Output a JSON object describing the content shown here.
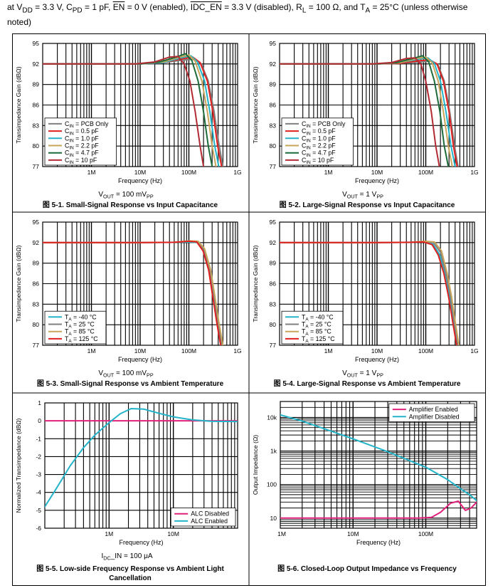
{
  "conditions": {
    "text": "at V_DD = 3.3 V, C_PD = 1 pF, EN = 0 V (enabled), IDC_EN = 3.3 V (disabled), R_L = 100 Ω, and T_A = 25°C (unless otherwise noted)"
  },
  "colors": {
    "pcb": "#7f7f7f",
    "c05": "#e0201f",
    "c10": "#23b4c9",
    "c22": "#c8a55a",
    "c47": "#1c6b3a",
    "c10p": "#b22b34",
    "t_m40": "#23b4c9",
    "t_25": "#7f7f7f",
    "t_85": "#c8a55a",
    "t_125": "#e0201f",
    "alc_disabled": "#e0217a",
    "alc_enabled": "#23b4c9",
    "amp_enabled": "#e0217a",
    "amp_disabled": "#23b4c9"
  },
  "chart_data": [
    {
      "id": "fig-5-1",
      "type": "line",
      "caption": "图 5-1. Small-Signal Response vs Input Capacitance",
      "subcaption": "V_OUT = 100 mV_PP",
      "xlabel": "Frequency (Hz)",
      "ylabel": "Transimpedance Gain (dBΩ)",
      "xscale": "log",
      "xlim": [
        100000,
        1000000000
      ],
      "ylim": [
        77,
        95
      ],
      "xticks": [
        {
          "v": 1000000,
          "label": "1M"
        },
        {
          "v": 10000000,
          "label": "10M"
        },
        {
          "v": 100000000,
          "label": "100M"
        },
        {
          "v": 1000000000,
          "label": "1G"
        }
      ],
      "yticks": [
        77,
        80,
        83,
        86,
        89,
        92,
        95
      ],
      "legend": "bottom-left",
      "series": [
        {
          "name": "C_IN = PCB Only",
          "color_key": "pcb",
          "x": [
            100000,
            10000000,
            30000000,
            80000000,
            130000000,
            180000000,
            250000000,
            330000000,
            420000000,
            500000000
          ],
          "y": [
            92,
            92,
            92.2,
            92.6,
            92.7,
            92,
            89.5,
            85,
            80,
            77
          ]
        },
        {
          "name": "C_IN = 0.5 pF",
          "color_key": "c05",
          "x": [
            100000,
            10000000,
            30000000,
            80000000,
            120000000,
            170000000,
            240000000,
            310000000,
            390000000,
            470000000
          ],
          "y": [
            92,
            92,
            92.2,
            92.8,
            93,
            92.2,
            89.5,
            85,
            80,
            77
          ]
        },
        {
          "name": "C_IN = 1.0 pF",
          "color_key": "c10",
          "x": [
            100000,
            10000000,
            30000000,
            70000000,
            110000000,
            150000000,
            210000000,
            270000000,
            340000000,
            410000000
          ],
          "y": [
            92,
            92,
            92.2,
            92.9,
            93.2,
            92.3,
            89.5,
            85,
            80,
            77
          ]
        },
        {
          "name": "C_IN = 2.2 pF",
          "color_key": "c22",
          "x": [
            100000,
            10000000,
            30000000,
            65000000,
            100000000,
            135000000,
            185000000,
            240000000,
            300000000,
            360000000
          ],
          "y": [
            92,
            92,
            92.3,
            93,
            93.3,
            92.4,
            89.5,
            85,
            80,
            77
          ]
        },
        {
          "name": "C_IN = 4.7 pF",
          "color_key": "c47",
          "x": [
            100000,
            10000000,
            25000000,
            55000000,
            85000000,
            115000000,
            155000000,
            200000000,
            250000000,
            300000000
          ],
          "y": [
            92,
            92,
            92.3,
            93,
            93.5,
            92.5,
            89.5,
            85,
            80,
            77
          ]
        },
        {
          "name": "C_IN = 10 pF",
          "color_key": "c10p",
          "x": [
            100000,
            8000000,
            20000000,
            40000000,
            60000000,
            80000000,
            105000000,
            135000000,
            170000000,
            200000000
          ],
          "y": [
            92,
            92,
            92.3,
            93,
            93.1,
            92,
            89.5,
            85,
            80,
            77
          ]
        }
      ]
    },
    {
      "id": "fig-5-2",
      "type": "line",
      "caption": "图 5-2. Large-Signal Response vs Input Capacitance",
      "subcaption": "V_OUT = 1 V_PP",
      "xlabel": "Frequency (Hz)",
      "ylabel": "Transimpedance Gain (dBΩ)",
      "xscale": "log",
      "xlim": [
        100000,
        1000000000
      ],
      "ylim": [
        77,
        95
      ],
      "xticks": [
        {
          "v": 1000000,
          "label": "1M"
        },
        {
          "v": 10000000,
          "label": "10M"
        },
        {
          "v": 100000000,
          "label": "100M"
        },
        {
          "v": 1000000000,
          "label": "1G"
        }
      ],
      "yticks": [
        77,
        80,
        83,
        86,
        89,
        92,
        95
      ],
      "legend": "bottom-left",
      "series": [
        {
          "name": "C_IN = PCB Only",
          "color_key": "pcb",
          "x": [
            100000,
            10000000,
            30000000,
            80000000,
            130000000,
            180000000,
            240000000,
            310000000,
            390000000,
            460000000
          ],
          "y": [
            92,
            92,
            92.1,
            92.3,
            92.4,
            91.8,
            89.5,
            85,
            80,
            77
          ]
        },
        {
          "name": "C_IN = 0.5 pF",
          "color_key": "c05",
          "x": [
            100000,
            10000000,
            30000000,
            80000000,
            120000000,
            170000000,
            230000000,
            300000000,
            370000000,
            440000000
          ],
          "y": [
            92,
            92,
            92.1,
            92.5,
            92.6,
            92,
            89.5,
            85,
            80,
            77
          ]
        },
        {
          "name": "C_IN = 1.0 pF",
          "color_key": "c10",
          "x": [
            100000,
            10000000,
            30000000,
            70000000,
            110000000,
            150000000,
            200000000,
            260000000,
            330000000,
            400000000
          ],
          "y": [
            92,
            92,
            92.2,
            92.7,
            92.9,
            92.1,
            89.5,
            85,
            80,
            77
          ]
        },
        {
          "name": "C_IN = 2.2 pF",
          "color_key": "c22",
          "x": [
            100000,
            10000000,
            30000000,
            65000000,
            100000000,
            135000000,
            180000000,
            230000000,
            290000000,
            350000000
          ],
          "y": [
            92,
            92,
            92.2,
            92.8,
            93,
            92.2,
            89.5,
            85,
            80,
            77
          ]
        },
        {
          "name": "C_IN = 4.7 pF",
          "color_key": "c47",
          "x": [
            100000,
            10000000,
            25000000,
            55000000,
            85000000,
            115000000,
            150000000,
            195000000,
            240000000,
            290000000
          ],
          "y": [
            92,
            92,
            92.2,
            92.8,
            93.2,
            92.3,
            89.5,
            85,
            80,
            77
          ]
        },
        {
          "name": "C_IN = 10 pF",
          "color_key": "c10p",
          "x": [
            100000,
            8000000,
            20000000,
            40000000,
            60000000,
            80000000,
            100000000,
            130000000,
            160000000,
            190000000
          ],
          "y": [
            92,
            92,
            92.2,
            92.8,
            92.9,
            91.9,
            89.5,
            85,
            80,
            77
          ]
        }
      ]
    },
    {
      "id": "fig-5-3",
      "type": "line",
      "caption": "图 5-3. Small-Signal Response vs Ambient Temperature",
      "subcaption": "V_OUT = 100 mV_PP",
      "xlabel": "Frequency (Hz)",
      "ylabel": "Transimpedance Gain (dBΩ)",
      "xscale": "log",
      "xlim": [
        100000,
        1000000000
      ],
      "ylim": [
        77,
        95
      ],
      "xticks": [
        {
          "v": 1000000,
          "label": "1M"
        },
        {
          "v": 10000000,
          "label": "10M"
        },
        {
          "v": 100000000,
          "label": "100M"
        },
        {
          "v": 1000000000,
          "label": "1G"
        }
      ],
      "yticks": [
        77,
        80,
        83,
        86,
        89,
        92,
        95
      ],
      "legend": "bottom-left",
      "series": [
        {
          "name": "T_A = -40 °C",
          "color_key": "t_m40",
          "x": [
            100000,
            10000000,
            50000000,
            100000000,
            150000000,
            200000000,
            260000000,
            320000000,
            390000000,
            460000000
          ],
          "y": [
            92,
            92,
            92.05,
            92.1,
            92,
            90.8,
            88,
            84,
            80,
            77
          ]
        },
        {
          "name": "T_A = 25 °C",
          "color_key": "t_25",
          "x": [
            100000,
            10000000,
            50000000,
            100000000,
            150000000,
            205000000,
            270000000,
            335000000,
            405000000,
            480000000
          ],
          "y": [
            92,
            92,
            92.05,
            92.2,
            92.1,
            91,
            88,
            84,
            80,
            77
          ]
        },
        {
          "name": "T_A = 85 °C",
          "color_key": "t_85",
          "x": [
            100000,
            10000000,
            50000000,
            100000000,
            155000000,
            210000000,
            280000000,
            345000000,
            420000000,
            500000000
          ],
          "y": [
            92,
            92,
            92.05,
            92.25,
            92.2,
            91.1,
            88,
            84,
            80,
            77
          ]
        },
        {
          "name": "T_A = 125 °C",
          "color_key": "t_125",
          "x": [
            100000,
            10000000,
            50000000,
            100000000,
            145000000,
            195000000,
            255000000,
            310000000,
            380000000,
            450000000
          ],
          "y": [
            92,
            92,
            92.05,
            92.2,
            92.1,
            90.8,
            88,
            84,
            80,
            77
          ]
        }
      ]
    },
    {
      "id": "fig-5-4",
      "type": "line",
      "caption": "图 5-4. Large-Signal Response vs Ambient Temperature",
      "subcaption": "V_OUT = 1 V_PP",
      "xlabel": "Frequency (Hz)",
      "ylabel": "Transimpedance Gain (dBΩ)",
      "xscale": "log",
      "xlim": [
        100000,
        1000000000
      ],
      "ylim": [
        77,
        95
      ],
      "xticks": [
        {
          "v": 1000000,
          "label": "1M"
        },
        {
          "v": 10000000,
          "label": "10M"
        },
        {
          "v": 100000000,
          "label": "100M"
        },
        {
          "v": 1000000000,
          "label": "1G"
        }
      ],
      "yticks": [
        77,
        80,
        83,
        86,
        89,
        92,
        95
      ],
      "legend": "bottom-left",
      "series": [
        {
          "name": "T_A = -40 °C",
          "color_key": "t_m40",
          "x": [
            100000,
            10000000,
            50000000,
            90000000,
            140000000,
            190000000,
            250000000,
            310000000,
            380000000,
            440000000
          ],
          "y": [
            92,
            92,
            92.05,
            92.1,
            91.8,
            90.3,
            87.5,
            84,
            80,
            77
          ]
        },
        {
          "name": "T_A = 25 °C",
          "color_key": "t_25",
          "x": [
            100000,
            10000000,
            50000000,
            90000000,
            145000000,
            200000000,
            260000000,
            325000000,
            395000000,
            460000000
          ],
          "y": [
            92,
            92,
            92.05,
            92.15,
            92,
            90.6,
            87.5,
            84,
            80,
            77
          ]
        },
        {
          "name": "T_A = 85 °C",
          "color_key": "t_85",
          "x": [
            100000,
            10000000,
            50000000,
            95000000,
            150000000,
            210000000,
            275000000,
            340000000,
            410000000,
            480000000
          ],
          "y": [
            92,
            92,
            92.05,
            92.2,
            92.1,
            90.8,
            87.5,
            84,
            80,
            77
          ]
        },
        {
          "name": "T_A = 125 °C",
          "color_key": "t_125",
          "x": [
            100000,
            10000000,
            50000000,
            90000000,
            135000000,
            180000000,
            235000000,
            295000000,
            365000000,
            430000000
          ],
          "y": [
            92,
            92,
            92.05,
            92.1,
            91.7,
            90.2,
            87.5,
            84,
            80,
            77
          ]
        }
      ]
    },
    {
      "id": "fig-5-5",
      "type": "line",
      "caption": "图 5-5. Low-side Frequency Response vs Ambient Light Cancellation",
      "subcaption": "I_DC_IN = 100 μA",
      "xlabel": "Frequency (Hz)",
      "ylabel": "Normalized Transimpedance (dBΩ)",
      "xscale": "log",
      "xlim": [
        100000,
        100000000
      ],
      "ylim": [
        -6,
        1
      ],
      "xticks": [
        {
          "v": 1000000,
          "label": "1M"
        },
        {
          "v": 10000000,
          "label": "10M"
        }
      ],
      "yticks": [
        -6,
        -5,
        -4,
        -3,
        -2,
        -1,
        0,
        1
      ],
      "legend": "bottom-right",
      "series": [
        {
          "name": "ALC Disabled",
          "color_key": "alc_disabled",
          "x": [
            100000,
            100000000
          ],
          "y": [
            0,
            0
          ]
        },
        {
          "name": "ALC Enabled",
          "color_key": "alc_enabled",
          "x": [
            100000,
            150000,
            250000,
            400000,
            600000,
            1000000,
            1500000,
            2200000,
            3500000,
            6000000,
            10000000,
            20000000,
            40000000,
            100000000
          ],
          "y": [
            -4.8,
            -3.8,
            -2.5,
            -1.5,
            -0.8,
            -0.1,
            0.4,
            0.68,
            0.65,
            0.42,
            0.22,
            0.05,
            -0.03,
            -0.04
          ]
        }
      ]
    },
    {
      "id": "fig-5-6",
      "type": "line",
      "caption": "图 5-6. Closed-Loop Output Impedance vs Frequency",
      "subcaption": "",
      "xlabel": "Frequency (Hz)",
      "ylabel": "Output Impedance (Ω)",
      "xscale": "log",
      "yscale": "log",
      "xlim": [
        1000000,
        500000000
      ],
      "ylim": [
        5,
        30000
      ],
      "xticks": [
        {
          "v": 1000000,
          "label": "1M"
        },
        {
          "v": 10000000,
          "label": "10M"
        },
        {
          "v": 100000000,
          "label": "100M"
        }
      ],
      "yticks": [
        {
          "v": 10,
          "label": "10"
        },
        {
          "v": 100,
          "label": "100"
        },
        {
          "v": 1000,
          "label": "1k"
        },
        {
          "v": 10000,
          "label": "10k"
        }
      ],
      "legend": "top-right",
      "series": [
        {
          "name": "Amplifier Enabled",
          "color_key": "amp_enabled",
          "x": [
            1000000,
            10000000,
            80000000,
            120000000,
            160000000,
            220000000,
            280000000,
            350000000,
            420000000,
            500000000
          ],
          "y": [
            10,
            10,
            10,
            10.5,
            15,
            28,
            32,
            17,
            20,
            30
          ]
        },
        {
          "name": "Amplifier Disabled",
          "color_key": "amp_disabled",
          "x": [
            1000000,
            2000000,
            5000000,
            10000000,
            30000000,
            100000000,
            200000000,
            300000000,
            400000000,
            500000000
          ],
          "y": [
            12000,
            7800,
            3900,
            2300,
            950,
            330,
            140,
            75,
            50,
            33
          ]
        }
      ]
    }
  ]
}
